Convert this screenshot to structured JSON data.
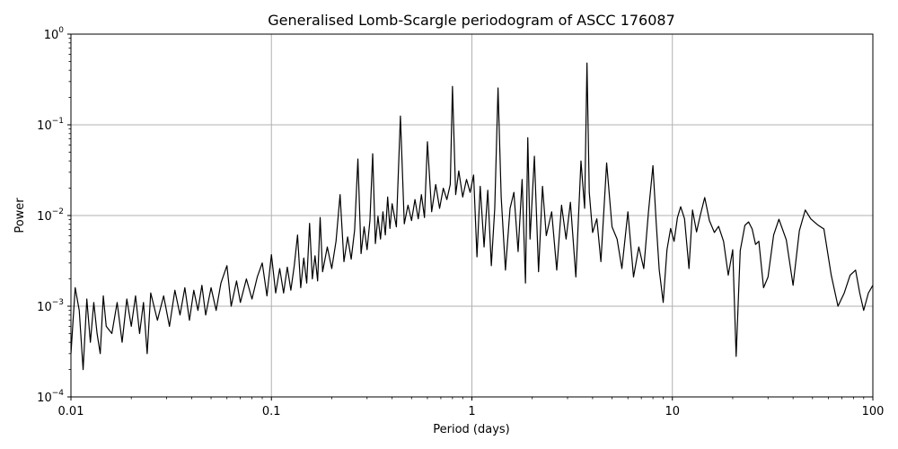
{
  "chart_data": {
    "type": "line",
    "title": "Generalised Lomb-Scargle periodogram of ASCC 176087",
    "xlabel": "Period (days)",
    "ylabel": "Power",
    "x_scale": "log",
    "y_scale": "log",
    "xlim": [
      0.01,
      100
    ],
    "ylim": [
      0.0001,
      1
    ],
    "x_ticks": [
      {
        "value": 0.01,
        "label": "0.01"
      },
      {
        "value": 0.1,
        "label": "0.1"
      },
      {
        "value": 1,
        "label": "1"
      },
      {
        "value": 10,
        "label": "10"
      },
      {
        "value": 100,
        "label": "100"
      }
    ],
    "y_ticks": [
      {
        "value": 0.0001,
        "label": "10",
        "exp": "−4"
      },
      {
        "value": 0.001,
        "label": "10",
        "exp": "−3"
      },
      {
        "value": 0.01,
        "label": "10",
        "exp": "−2"
      },
      {
        "value": 0.1,
        "label": "10",
        "exp": "−1"
      },
      {
        "value": 1,
        "label": "10",
        "exp": "0"
      }
    ],
    "grid": true,
    "line_color": "#000000",
    "grid_color": "#b0b0b0",
    "series": [
      {
        "points": [
          [
            0.01,
            0.0003
          ],
          [
            0.0105,
            0.0016
          ],
          [
            0.011,
            0.0009
          ],
          [
            0.0115,
            0.0002
          ],
          [
            0.012,
            0.0012
          ],
          [
            0.0125,
            0.0004
          ],
          [
            0.013,
            0.0011
          ],
          [
            0.0135,
            0.0005
          ],
          [
            0.014,
            0.0003
          ],
          [
            0.0145,
            0.0013
          ],
          [
            0.015,
            0.0006
          ],
          [
            0.016,
            0.0005
          ],
          [
            0.017,
            0.0011
          ],
          [
            0.018,
            0.0004
          ],
          [
            0.019,
            0.0012
          ],
          [
            0.02,
            0.0006
          ],
          [
            0.021,
            0.0013
          ],
          [
            0.022,
            0.0005
          ],
          [
            0.023,
            0.0011
          ],
          [
            0.024,
            0.0003
          ],
          [
            0.025,
            0.0014
          ],
          [
            0.027,
            0.0007
          ],
          [
            0.029,
            0.0013
          ],
          [
            0.031,
            0.0006
          ],
          [
            0.033,
            0.0015
          ],
          [
            0.035,
            0.0008
          ],
          [
            0.037,
            0.0016
          ],
          [
            0.039,
            0.0007
          ],
          [
            0.041,
            0.0015
          ],
          [
            0.043,
            0.0009
          ],
          [
            0.045,
            0.0017
          ],
          [
            0.047,
            0.0008
          ],
          [
            0.05,
            0.0016
          ],
          [
            0.053,
            0.0009
          ],
          [
            0.056,
            0.0018
          ],
          [
            0.06,
            0.0028
          ],
          [
            0.063,
            0.001
          ],
          [
            0.067,
            0.0019
          ],
          [
            0.07,
            0.0011
          ],
          [
            0.075,
            0.002
          ],
          [
            0.08,
            0.0012
          ],
          [
            0.085,
            0.0021
          ],
          [
            0.09,
            0.003
          ],
          [
            0.095,
            0.0013
          ],
          [
            0.1,
            0.0037
          ],
          [
            0.105,
            0.0014
          ],
          [
            0.11,
            0.0026
          ],
          [
            0.115,
            0.0014
          ],
          [
            0.12,
            0.0027
          ],
          [
            0.125,
            0.0015
          ],
          [
            0.13,
            0.0028
          ],
          [
            0.135,
            0.0061
          ],
          [
            0.14,
            0.0016
          ],
          [
            0.145,
            0.0034
          ],
          [
            0.15,
            0.0018
          ],
          [
            0.155,
            0.0082
          ],
          [
            0.16,
            0.002
          ],
          [
            0.165,
            0.0036
          ],
          [
            0.17,
            0.0019
          ],
          [
            0.175,
            0.0095
          ],
          [
            0.18,
            0.0024
          ],
          [
            0.19,
            0.0045
          ],
          [
            0.2,
            0.0026
          ],
          [
            0.21,
            0.0052
          ],
          [
            0.22,
            0.017
          ],
          [
            0.23,
            0.0031
          ],
          [
            0.24,
            0.0058
          ],
          [
            0.25,
            0.0033
          ],
          [
            0.26,
            0.0069
          ],
          [
            0.27,
            0.042
          ],
          [
            0.28,
            0.0038
          ],
          [
            0.29,
            0.0075
          ],
          [
            0.3,
            0.0042
          ],
          [
            0.31,
            0.0088
          ],
          [
            0.32,
            0.048
          ],
          [
            0.33,
            0.0049
          ],
          [
            0.34,
            0.0098
          ],
          [
            0.35,
            0.0055
          ],
          [
            0.36,
            0.011
          ],
          [
            0.37,
            0.0061
          ],
          [
            0.38,
            0.016
          ],
          [
            0.39,
            0.0072
          ],
          [
            0.4,
            0.0135
          ],
          [
            0.42,
            0.0075
          ],
          [
            0.44,
            0.125
          ],
          [
            0.46,
            0.0081
          ],
          [
            0.48,
            0.013
          ],
          [
            0.5,
            0.0088
          ],
          [
            0.52,
            0.015
          ],
          [
            0.54,
            0.0092
          ],
          [
            0.56,
            0.017
          ],
          [
            0.58,
            0.0095
          ],
          [
            0.6,
            0.065
          ],
          [
            0.63,
            0.011
          ],
          [
            0.66,
            0.022
          ],
          [
            0.69,
            0.012
          ],
          [
            0.72,
            0.02
          ],
          [
            0.75,
            0.015
          ],
          [
            0.78,
            0.022
          ],
          [
            0.8,
            0.265
          ],
          [
            0.83,
            0.017
          ],
          [
            0.86,
            0.031
          ],
          [
            0.9,
            0.016
          ],
          [
            0.94,
            0.025
          ],
          [
            0.98,
            0.018
          ],
          [
            1.02,
            0.028
          ],
          [
            1.06,
            0.0035
          ],
          [
            1.1,
            0.021
          ],
          [
            1.15,
            0.0045
          ],
          [
            1.2,
            0.019
          ],
          [
            1.25,
            0.0028
          ],
          [
            1.3,
            0.012
          ],
          [
            1.35,
            0.255
          ],
          [
            1.4,
            0.016
          ],
          [
            1.47,
            0.0025
          ],
          [
            1.55,
            0.012
          ],
          [
            1.62,
            0.018
          ],
          [
            1.7,
            0.004
          ],
          [
            1.78,
            0.025
          ],
          [
            1.85,
            0.0018
          ],
          [
            1.9,
            0.072
          ],
          [
            1.95,
            0.0055
          ],
          [
            2.05,
            0.045
          ],
          [
            2.15,
            0.0024
          ],
          [
            2.25,
            0.021
          ],
          [
            2.35,
            0.006
          ],
          [
            2.5,
            0.011
          ],
          [
            2.65,
            0.0025
          ],
          [
            2.8,
            0.013
          ],
          [
            2.95,
            0.0055
          ],
          [
            3.1,
            0.014
          ],
          [
            3.3,
            0.0021
          ],
          [
            3.5,
            0.04
          ],
          [
            3.65,
            0.012
          ],
          [
            3.75,
            0.48
          ],
          [
            3.85,
            0.018
          ],
          [
            4.0,
            0.0065
          ],
          [
            4.2,
            0.0092
          ],
          [
            4.4,
            0.0031
          ],
          [
            4.7,
            0.038
          ],
          [
            5.0,
            0.0075
          ],
          [
            5.3,
            0.0055
          ],
          [
            5.6,
            0.0026
          ],
          [
            6.0,
            0.011
          ],
          [
            6.4,
            0.0021
          ],
          [
            6.8,
            0.0045
          ],
          [
            7.2,
            0.0026
          ],
          [
            7.6,
            0.011
          ],
          [
            8.0,
            0.0355
          ],
          [
            8.3,
            0.0085
          ],
          [
            8.6,
            0.0025
          ],
          [
            9.0,
            0.0011
          ],
          [
            9.4,
            0.0042
          ],
          [
            9.8,
            0.0072
          ],
          [
            10.2,
            0.0052
          ],
          [
            10.6,
            0.0095
          ],
          [
            11.0,
            0.0125
          ],
          [
            11.5,
            0.0092
          ],
          [
            12.1,
            0.0026
          ],
          [
            12.6,
            0.0115
          ],
          [
            13.2,
            0.0066
          ],
          [
            13.8,
            0.0102
          ],
          [
            14.5,
            0.0158
          ],
          [
            15.3,
            0.0088
          ],
          [
            16.2,
            0.0065
          ],
          [
            17.0,
            0.0076
          ],
          [
            18.0,
            0.0052
          ],
          [
            19.0,
            0.0022
          ],
          [
            20.0,
            0.0042
          ],
          [
            20.8,
            0.00028
          ],
          [
            21.8,
            0.0041
          ],
          [
            23.0,
            0.0078
          ],
          [
            24.0,
            0.0085
          ],
          [
            25.0,
            0.0071
          ],
          [
            26.0,
            0.0048
          ],
          [
            27.0,
            0.0052
          ],
          [
            28.5,
            0.0016
          ],
          [
            30.0,
            0.0021
          ],
          [
            32.0,
            0.0061
          ],
          [
            34.0,
            0.0091
          ],
          [
            37.0,
            0.0054
          ],
          [
            40.0,
            0.0017
          ],
          [
            43.0,
            0.0068
          ],
          [
            46.0,
            0.0115
          ],
          [
            49.0,
            0.0092
          ],
          [
            53.0,
            0.0079
          ],
          [
            57.0,
            0.0071
          ],
          [
            62.0,
            0.0022
          ],
          [
            67.0,
            0.001
          ],
          [
            72.0,
            0.0014
          ],
          [
            77.0,
            0.0022
          ],
          [
            82.0,
            0.0025
          ],
          [
            86.0,
            0.0014
          ],
          [
            90.0,
            0.0009
          ],
          [
            95.0,
            0.0014
          ],
          [
            100.0,
            0.0017
          ]
        ]
      }
    ]
  }
}
